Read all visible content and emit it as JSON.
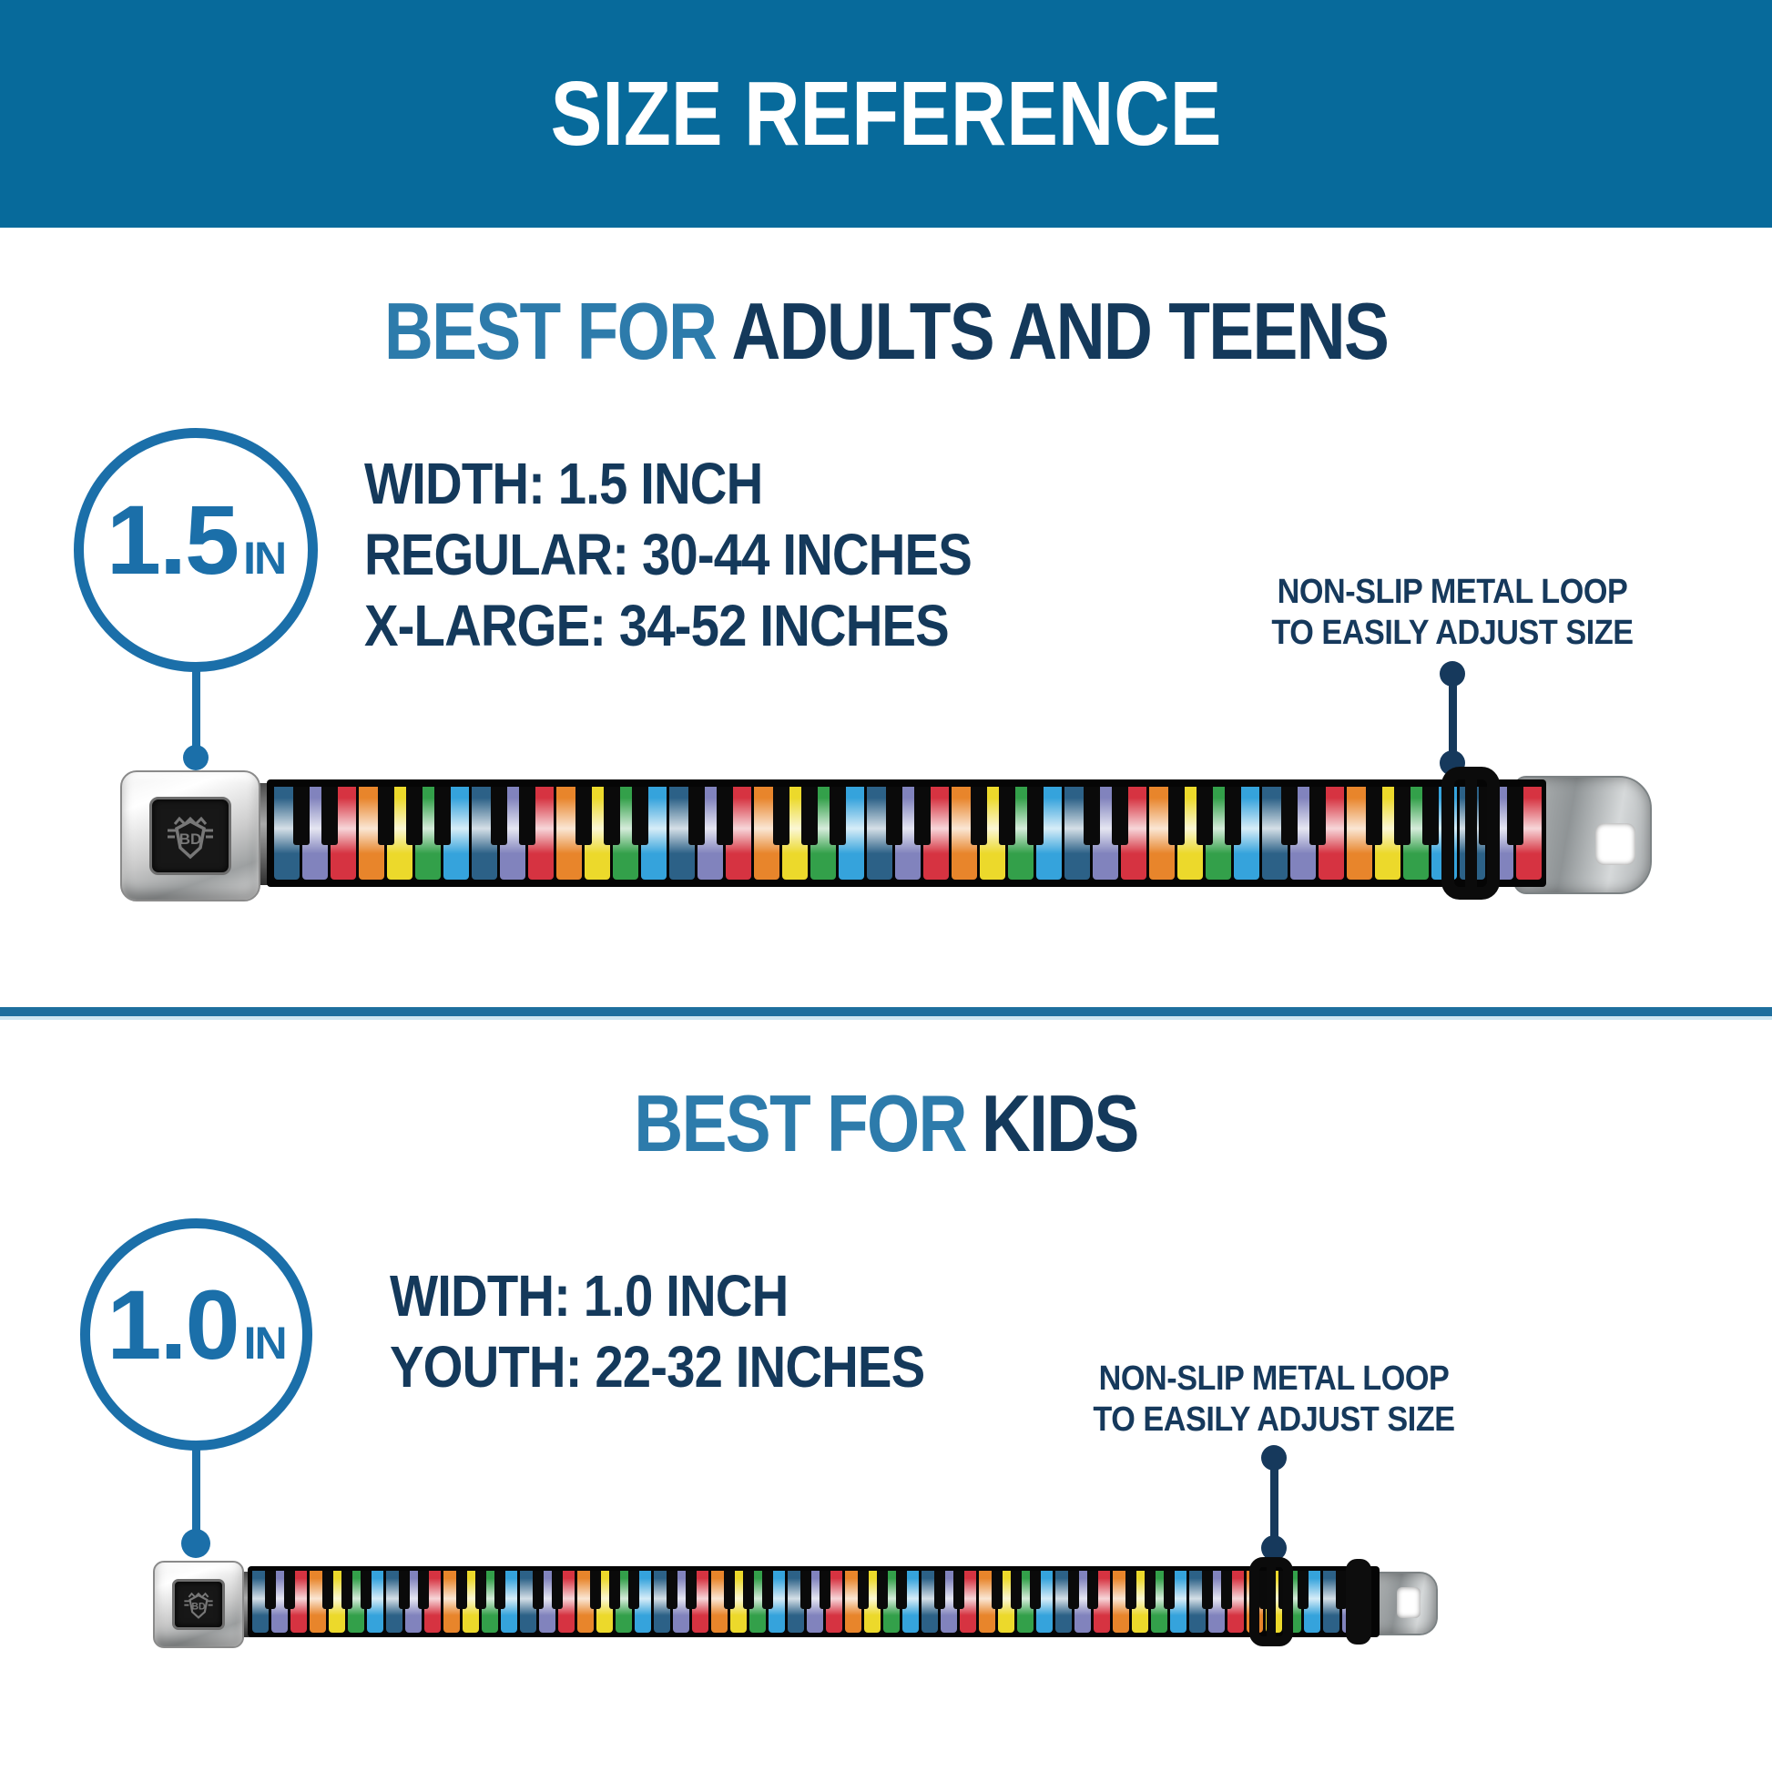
{
  "header": {
    "title": "SIZE REFERENCE",
    "bg_color": "#076a9b",
    "text_color": "#ffffff"
  },
  "colors": {
    "heading_accent_blue": "#2d7bab",
    "heading_dark_navy": "#14395b",
    "badge_blue": "#1b6fa9",
    "callout_navy": "#16395c",
    "divider_blue": "#1e6f9e"
  },
  "sections": [
    {
      "id": "adults",
      "heading_accent": "BEST FOR",
      "heading_rest": "ADULTS AND TEENS",
      "badge": {
        "value": "1.5",
        "unit": "IN"
      },
      "specs": [
        "WIDTH: 1.5 INCH",
        "REGULAR: 30-44 INCHES",
        "X-LARGE: 34-52 INCHES"
      ],
      "callout": {
        "line1": "NON-SLIP METAL LOOP",
        "line2": "TO EASILY ADJUST SIZE"
      }
    },
    {
      "id": "kids",
      "heading_accent": "BEST FOR",
      "heading_rest": "KIDS",
      "badge": {
        "value": "1.0",
        "unit": "IN"
      },
      "specs": [
        "WIDTH: 1.0 INCH",
        "YOUTH: 22-32 INCHES"
      ],
      "callout": {
        "line1": "NON-SLIP METAL LOOP",
        "line2": "TO EASILY ADJUST SIZE"
      }
    }
  ],
  "belt": {
    "buckle_logo": "BD",
    "webbing_color": "#050505",
    "black_key_color": "#0a0a0a",
    "key_colors": [
      "#2c6187",
      "#8183bd",
      "#d63341",
      "#e8852b",
      "#ecd92b",
      "#33a04a",
      "#35a3dc"
    ]
  }
}
